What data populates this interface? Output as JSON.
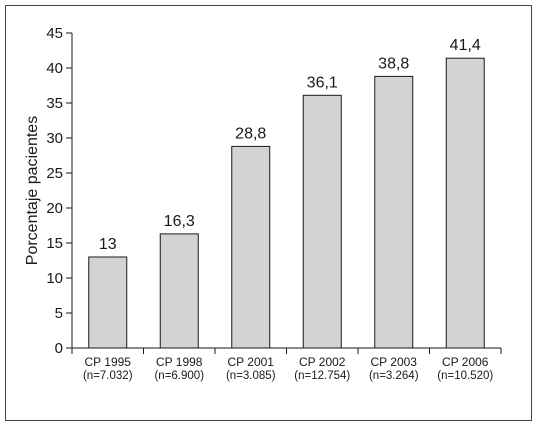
{
  "chart_data": {
    "type": "bar",
    "title": "",
    "xlabel": "",
    "ylabel": "Porcentaje pacientes",
    "ylim": [
      0,
      45
    ],
    "yticks": [
      0,
      5,
      10,
      15,
      20,
      25,
      30,
      35,
      40,
      45
    ],
    "categories": [
      "CP 1995",
      "CP 1998",
      "CP 2001",
      "CP 2002",
      "CP 2003",
      "CP 2006"
    ],
    "category_sublabels": [
      "(n=7.032)",
      "(n=6.900)",
      "(n=3.085)",
      "(n=12.754)",
      "(n=3.264)",
      "(n=10.520)"
    ],
    "values": [
      13,
      16.3,
      28.8,
      36.1,
      38.8,
      41.4
    ],
    "value_labels": [
      "13",
      "16,3",
      "28,8",
      "36,1",
      "38,8",
      "41,4"
    ],
    "bar_color": "#d3d3d3",
    "bar_edge_color": "#1a1a1a",
    "grid": false,
    "legend": "none"
  }
}
